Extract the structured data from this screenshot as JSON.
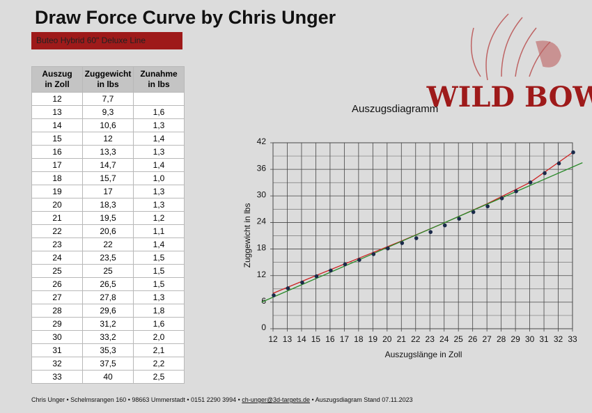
{
  "header": {
    "title": "Draw Force Curve by Chris Unger",
    "subtitle": "Buteo Hybrid 60\" Deluxe Line",
    "logo": "WILD BOW"
  },
  "table": {
    "columns": [
      [
        "Auszug",
        "in Zoll"
      ],
      [
        "Zuggewicht",
        "in lbs"
      ],
      [
        "Zunahme",
        "in lbs"
      ]
    ],
    "rows": [
      [
        "12",
        "7,7"
      ],
      [
        "13",
        "9,3",
        "1,6"
      ],
      [
        "14",
        "10,6",
        "1,3"
      ],
      [
        "15",
        "12",
        "1,4"
      ],
      [
        "16",
        "13,3",
        "1,3"
      ],
      [
        "17",
        "14,7",
        "1,4"
      ],
      [
        "18",
        "15,7",
        "1,0"
      ],
      [
        "19",
        "17",
        "1,3"
      ],
      [
        "20",
        "18,3",
        "1,3"
      ],
      [
        "21",
        "19,5",
        "1,2"
      ],
      [
        "22",
        "20,6",
        "1,1"
      ],
      [
        "23",
        "22",
        "1,4"
      ],
      [
        "24",
        "23,5",
        "1,5"
      ],
      [
        "25",
        "25",
        "1,5"
      ],
      [
        "26",
        "26,5",
        "1,5"
      ],
      [
        "27",
        "27,8",
        "1,3"
      ],
      [
        "28",
        "29,6",
        "1,8"
      ],
      [
        "29",
        "31,2",
        "1,6"
      ],
      [
        "30",
        "33,2",
        "2,0"
      ],
      [
        "31",
        "35,3",
        "2,1"
      ],
      [
        "32",
        "37,5",
        "2,2"
      ],
      [
        "33",
        "40",
        "2,5"
      ]
    ]
  },
  "chart_data": {
    "type": "scatter",
    "title": "Auszugsdiagramm",
    "x_label": "Auszugslänge in Zoll",
    "y_label": "Zuggewicht in lbs",
    "xlim": [
      12,
      33
    ],
    "xticks": [
      12,
      13,
      14,
      15,
      16,
      17,
      18,
      19,
      20,
      21,
      22,
      23,
      24,
      25,
      26,
      27,
      28,
      29,
      30,
      31,
      32,
      33
    ],
    "ylim": [
      0,
      42
    ],
    "yticks": [
      0,
      6,
      12,
      18,
      24,
      30,
      36,
      42
    ],
    "y_minor_grid": [
      3,
      9,
      15,
      21,
      27,
      33,
      39
    ],
    "grid": true,
    "series": [
      {
        "style": "line",
        "color": "#cc2222",
        "x": [
          12,
          15,
          18,
          21,
          24,
          27,
          30,
          33
        ],
        "values": [
          8.0,
          12.0,
          15.9,
          19.8,
          23.9,
          28.2,
          33.0,
          39.8
        ]
      },
      {
        "style": "line",
        "color": "#2a8a2a",
        "x": [
          11.2,
          33.7
        ],
        "values": [
          6.0,
          37.5
        ]
      },
      {
        "style": "points",
        "color": "#1a2a4a",
        "x": [
          12,
          13,
          14,
          15,
          16,
          17,
          18,
          19,
          20,
          21,
          22,
          23,
          24,
          25,
          26,
          27,
          28,
          29,
          30,
          31,
          32,
          33
        ],
        "values": [
          7.7,
          9.3,
          10.6,
          12,
          13.3,
          14.7,
          15.7,
          17,
          18.3,
          19.5,
          20.6,
          22,
          23.5,
          25,
          26.5,
          27.8,
          29.6,
          31.2,
          33.2,
          35.3,
          37.5,
          40
        ]
      }
    ]
  },
  "footer": {
    "before": "Chris Unger • Schelmsrangen 160 • 98663 Ummerstadt • 0151 2290 3994 •",
    "email": "ch-unger@3d-targets.de",
    "after": "• Auszugsdiagram Stand 07.11.2023"
  }
}
